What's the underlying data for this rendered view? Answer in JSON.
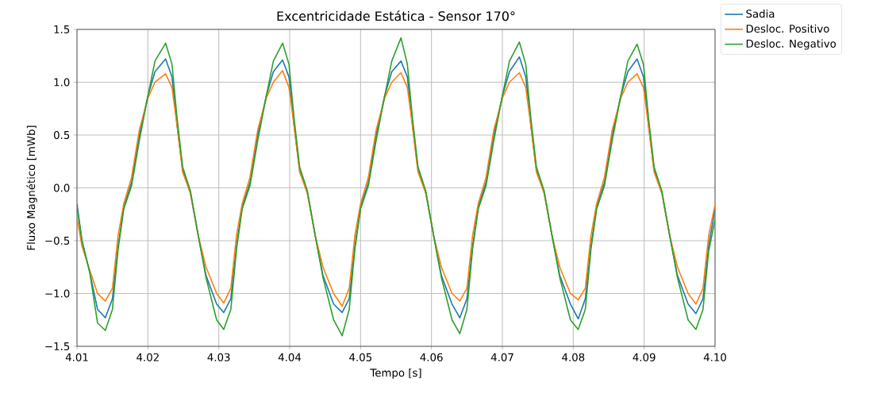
{
  "chart_data": {
    "type": "line",
    "title": "Excentricidade Estática - Sensor 170°",
    "xlabel": "Tempo [s]",
    "ylabel": "Fluxo Magnético [mWb]",
    "x": [
      4.01,
      4.0107,
      4.0118,
      4.0129,
      4.014,
      4.015,
      4.0158,
      4.0166,
      4.0177,
      4.0188,
      4.02,
      4.021,
      4.0225,
      4.0234,
      4.0241,
      4.0249,
      4.026,
      4.0271,
      4.0282,
      4.0297,
      4.0307,
      4.0317,
      4.0325,
      4.0333,
      4.0344,
      4.0355,
      4.0367,
      4.0377,
      4.039,
      4.0399,
      4.0406,
      4.0414,
      4.0425,
      4.0436,
      4.0447,
      4.0462,
      4.0474,
      4.0484,
      4.0492,
      4.05,
      4.0511,
      4.0522,
      4.0534,
      4.0544,
      4.0557,
      4.0566,
      4.0573,
      4.0581,
      4.0592,
      4.0603,
      4.0614,
      4.0629,
      4.064,
      4.065,
      4.0658,
      4.0666,
      4.0677,
      4.0688,
      4.07,
      4.071,
      4.0724,
      4.0733,
      4.074,
      4.0748,
      4.0759,
      4.077,
      4.0781,
      4.0796,
      4.0807,
      4.0817,
      4.0825,
      4.0833,
      4.0844,
      4.0855,
      4.0867,
      4.0877,
      4.089,
      4.0899,
      4.0906,
      4.0914,
      4.0925,
      4.0936,
      4.0947,
      4.0962,
      4.0973,
      4.0983,
      4.0991,
      4.1
    ],
    "series": [
      {
        "name": "Sadia",
        "color": "#1f77b4",
        "values": [
          -0.15,
          -0.5,
          -0.8,
          -1.15,
          -1.23,
          -1.05,
          -0.55,
          -0.18,
          0.05,
          0.5,
          0.87,
          1.1,
          1.22,
          1.05,
          0.6,
          0.17,
          -0.05,
          -0.45,
          -0.83,
          -1.1,
          -1.18,
          -1.05,
          -0.55,
          -0.18,
          0.05,
          0.5,
          0.87,
          1.1,
          1.21,
          1.05,
          0.6,
          0.17,
          -0.05,
          -0.45,
          -0.83,
          -1.1,
          -1.18,
          -1.05,
          -0.55,
          -0.18,
          0.05,
          0.5,
          0.87,
          1.1,
          1.2,
          1.05,
          0.6,
          0.17,
          -0.05,
          -0.45,
          -0.83,
          -1.1,
          -1.23,
          -1.05,
          -0.55,
          -0.18,
          0.05,
          0.5,
          0.87,
          1.1,
          1.24,
          1.05,
          0.6,
          0.17,
          -0.05,
          -0.45,
          -0.83,
          -1.1,
          -1.24,
          -1.05,
          -0.55,
          -0.18,
          0.05,
          0.5,
          0.87,
          1.1,
          1.22,
          1.05,
          0.6,
          0.17,
          -0.05,
          -0.45,
          -0.83,
          -1.1,
          -1.19,
          -1.05,
          -0.55,
          -0.2
        ]
      },
      {
        "name": "Desloc. Positivo",
        "color": "#ff7f0e",
        "values": [
          -0.28,
          -0.55,
          -0.78,
          -1.0,
          -1.07,
          -0.95,
          -0.45,
          -0.15,
          0.1,
          0.55,
          0.85,
          1.0,
          1.08,
          0.95,
          0.6,
          0.15,
          -0.05,
          -0.45,
          -0.75,
          -1.0,
          -1.09,
          -0.95,
          -0.45,
          -0.15,
          0.1,
          0.55,
          0.85,
          1.0,
          1.11,
          0.95,
          0.6,
          0.15,
          -0.05,
          -0.45,
          -0.75,
          -1.0,
          -1.12,
          -0.95,
          -0.45,
          -0.15,
          0.1,
          0.55,
          0.85,
          1.0,
          1.09,
          0.95,
          0.6,
          0.15,
          -0.05,
          -0.45,
          -0.75,
          -1.0,
          -1.07,
          -0.95,
          -0.45,
          -0.15,
          0.1,
          0.55,
          0.85,
          1.0,
          1.09,
          0.95,
          0.6,
          0.15,
          -0.05,
          -0.45,
          -0.75,
          -1.0,
          -1.06,
          -0.95,
          -0.45,
          -0.15,
          0.1,
          0.55,
          0.85,
          1.0,
          1.08,
          0.95,
          0.6,
          0.15,
          -0.05,
          -0.45,
          -0.75,
          -1.0,
          -1.1,
          -0.95,
          -0.45,
          -0.16
        ]
      },
      {
        "name": "Desloc. Negativo",
        "color": "#2ca02c",
        "values": [
          -0.18,
          -0.5,
          -0.8,
          -1.28,
          -1.35,
          -1.15,
          -0.58,
          -0.2,
          0.02,
          0.45,
          0.87,
          1.2,
          1.37,
          1.17,
          0.67,
          0.2,
          -0.03,
          -0.45,
          -0.85,
          -1.25,
          -1.34,
          -1.15,
          -0.58,
          -0.2,
          0.02,
          0.45,
          0.87,
          1.2,
          1.37,
          1.17,
          0.67,
          0.2,
          -0.03,
          -0.45,
          -0.85,
          -1.25,
          -1.4,
          -1.15,
          -0.58,
          -0.2,
          0.02,
          0.45,
          0.87,
          1.2,
          1.42,
          1.17,
          0.67,
          0.2,
          -0.03,
          -0.45,
          -0.85,
          -1.25,
          -1.38,
          -1.15,
          -0.58,
          -0.2,
          0.02,
          0.45,
          0.87,
          1.2,
          1.38,
          1.17,
          0.67,
          0.2,
          -0.03,
          -0.45,
          -0.85,
          -1.25,
          -1.34,
          -1.15,
          -0.58,
          -0.2,
          0.02,
          0.45,
          0.87,
          1.2,
          1.36,
          1.17,
          0.67,
          0.2,
          -0.03,
          -0.45,
          -0.85,
          -1.25,
          -1.34,
          -1.15,
          -0.6,
          -0.3
        ]
      }
    ],
    "xlim": [
      4.01,
      4.1
    ],
    "xticks": [
      {
        "value": 4.01,
        "label": "4.01"
      },
      {
        "value": 4.02,
        "label": "4.02"
      },
      {
        "value": 4.03,
        "label": "4.03"
      },
      {
        "value": 4.04,
        "label": "4.04"
      },
      {
        "value": 4.05,
        "label": "4.05"
      },
      {
        "value": 4.06,
        "label": "4.06"
      },
      {
        "value": 4.07,
        "label": "4.07"
      },
      {
        "value": 4.08,
        "label": "4.08"
      },
      {
        "value": 4.09,
        "label": "4.09"
      },
      {
        "value": 4.1,
        "label": "4.10"
      }
    ],
    "ylim": [
      -1.5,
      1.5
    ],
    "yticks": [
      {
        "value": -1.5,
        "label": "−1.5"
      },
      {
        "value": -1.0,
        "label": "−1.0"
      },
      {
        "value": -0.5,
        "label": "−0.5"
      },
      {
        "value": 0.0,
        "label": "0.0"
      },
      {
        "value": 0.5,
        "label": "0.5"
      },
      {
        "value": 1.0,
        "label": "1.0"
      },
      {
        "value": 1.5,
        "label": "1.5"
      }
    ],
    "grid": true,
    "legend": "right",
    "line_style": "solid"
  }
}
